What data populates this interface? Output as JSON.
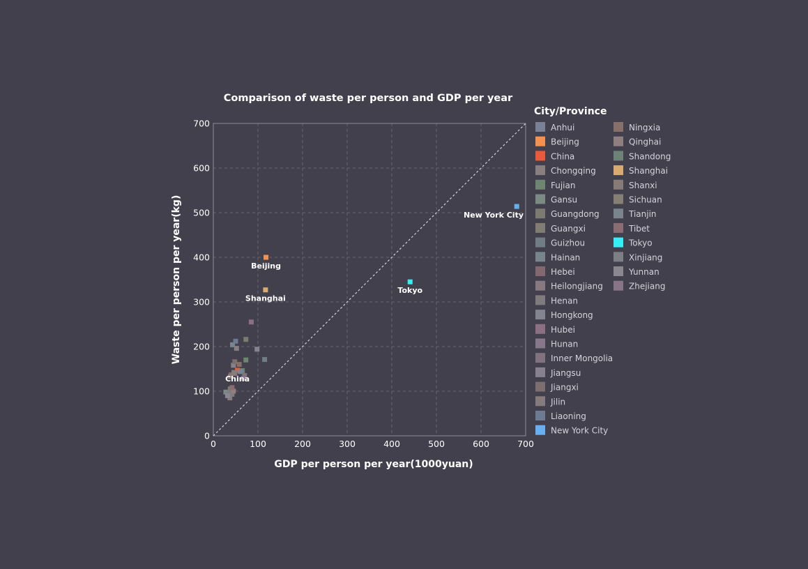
{
  "chart_data": {
    "type": "scatter",
    "title": "Comparison of waste per person and GDP per year",
    "xlabel": "GDP per person per year(1000yuan)",
    "ylabel": "Waste per person per year(kg)",
    "xlim": [
      0,
      700
    ],
    "ylim": [
      0,
      700
    ],
    "xticks": [
      0,
      100,
      200,
      300,
      400,
      500,
      600,
      700
    ],
    "yticks": [
      0,
      100,
      200,
      300,
      400,
      500,
      600,
      700
    ],
    "grid": true,
    "reference_line": "y = x",
    "legend_title": "City/Province",
    "legend_placement": "right",
    "series": [
      {
        "name": "Anhui",
        "color": "#7a8196",
        "points": [
          [
            35,
            95
          ]
        ]
      },
      {
        "name": "Beijing",
        "color": "#f4914f",
        "points": [
          [
            118,
            400
          ]
        ],
        "label": "Beijing"
      },
      {
        "name": "China",
        "color": "#e85a3c",
        "points": [
          [
            54,
            147
          ]
        ],
        "label": "China"
      },
      {
        "name": "Chongqing",
        "color": "#8a7f80",
        "points": [
          [
            52,
            196
          ]
        ]
      },
      {
        "name": "Fujian",
        "color": "#6e8670",
        "points": [
          [
            73,
            170
          ]
        ]
      },
      {
        "name": "Gansu",
        "color": "#7b8a82",
        "points": [
          [
            28,
            98
          ]
        ]
      },
      {
        "name": "Guangdong",
        "color": "#7d7a6f",
        "points": [
          [
            73,
            216
          ]
        ]
      },
      {
        "name": "Guangxi",
        "color": "#827d72",
        "points": [
          [
            38,
            105
          ]
        ]
      },
      {
        "name": "Guizhou",
        "color": "#707d85",
        "points": [
          [
            115,
            171
          ]
        ]
      },
      {
        "name": "Hainan",
        "color": "#78858d",
        "points": [
          [
            43,
            204
          ]
        ]
      },
      {
        "name": "Hebei",
        "color": "#84686f",
        "points": [
          [
            40,
            137
          ]
        ]
      },
      {
        "name": "Heilongjiang",
        "color": "#86797f",
        "points": [
          [
            42,
            100
          ]
        ]
      },
      {
        "name": "Henan",
        "color": "#7d7b7d",
        "points": [
          [
            42,
            93
          ]
        ]
      },
      {
        "name": "Hongkong",
        "color": "#838490",
        "points": [
          [
            98,
            194
          ]
        ]
      },
      {
        "name": "Hubei",
        "color": "#8b6f82",
        "points": [
          [
            85,
            255
          ]
        ]
      },
      {
        "name": "Hunan",
        "color": "#86788a",
        "points": [
          [
            48,
            140
          ]
        ]
      },
      {
        "name": "Inner Mongolia",
        "color": "#80727f",
        "points": [
          [
            70,
            135
          ]
        ]
      },
      {
        "name": "Jiangsu",
        "color": "#87808f",
        "points": [
          [
            45,
            158
          ]
        ]
      },
      {
        "name": "Jiangxi",
        "color": "#7d6f70",
        "points": [
          [
            48,
            166
          ]
        ]
      },
      {
        "name": "Jilin",
        "color": "#857a7d",
        "points": [
          [
            37,
            85
          ]
        ]
      },
      {
        "name": "Liaoning",
        "color": "#6c7a92",
        "points": [
          [
            50,
            212
          ]
        ]
      },
      {
        "name": "New York City",
        "color": "#6aaef2",
        "points": [
          [
            680,
            514
          ]
        ],
        "label": "New York City"
      },
      {
        "name": "Ningxia",
        "color": "#867067",
        "points": [
          [
            58,
            160
          ]
        ]
      },
      {
        "name": "Qinghai",
        "color": "#8f7f7f",
        "points": [
          [
            45,
            100
          ]
        ]
      },
      {
        "name": "Shandong",
        "color": "#6e8377",
        "points": [
          [
            65,
            146
          ]
        ]
      },
      {
        "name": "Shanghai",
        "color": "#d9ab70",
        "points": [
          [
            117,
            327
          ]
        ],
        "label": "Shanghai"
      },
      {
        "name": "Shanxi",
        "color": "#877b78",
        "points": [
          [
            38,
            133
          ]
        ]
      },
      {
        "name": "Sichuan",
        "color": "#858073",
        "points": [
          [
            46,
            142
          ]
        ]
      },
      {
        "name": "Tianjin",
        "color": "#7a848d",
        "points": [
          [
            60,
            144
          ]
        ]
      },
      {
        "name": "Tibet",
        "color": "#8a6d72",
        "points": [
          [
            42,
            108
          ]
        ]
      },
      {
        "name": "Tokyo",
        "color": "#33f0f5",
        "points": [
          [
            441,
            345
          ]
        ],
        "label": "Tokyo"
      },
      {
        "name": "Xinjiang",
        "color": "#7e7e86",
        "points": [
          [
            35,
            92
          ]
        ]
      },
      {
        "name": "Yunnan",
        "color": "#8b8790",
        "points": [
          [
            32,
            90
          ]
        ]
      },
      {
        "name": "Zhejiang",
        "color": "#877587",
        "points": [
          [
            67,
            129
          ]
        ]
      }
    ]
  }
}
